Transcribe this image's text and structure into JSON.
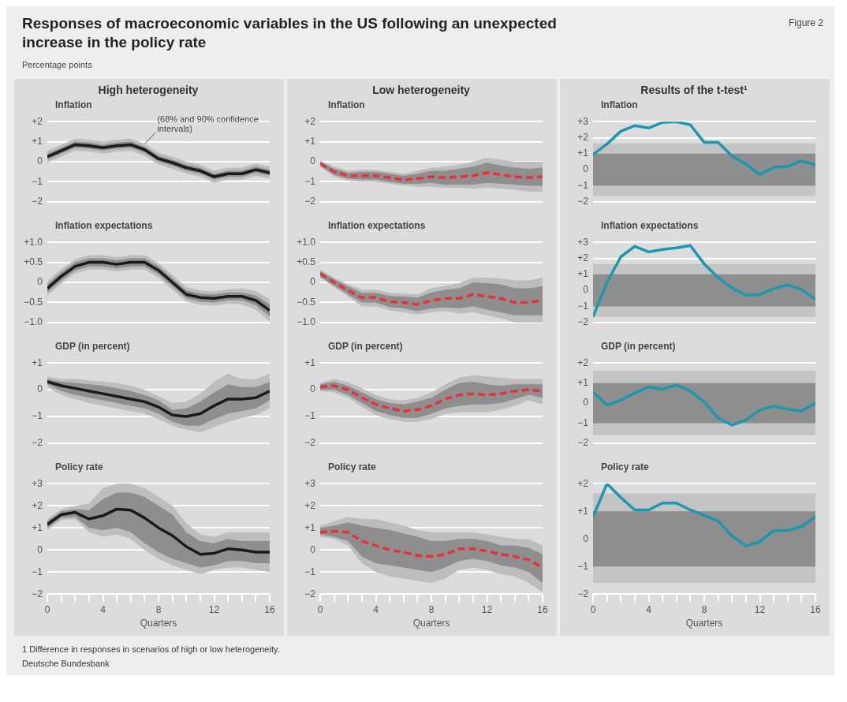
{
  "chart_data": [
    {
      "type": "other",
      "title": "Responses of macroeconomic variables in the US following an unexpected increase in the policy rate",
      "subtitle": "Percentage points",
      "annotations": [
        "Figure 2"
      ]
    },
    {
      "type": "line",
      "title": "High heterogeneity",
      "subtitle": "Inflation",
      "x": [
        0,
        1,
        2,
        3,
        4,
        5,
        6,
        7,
        8,
        9,
        10,
        11,
        12,
        13,
        14,
        15,
        16
      ],
      "xlim": [
        0,
        16
      ],
      "ylim": [
        -2,
        2
      ],
      "yticks": [
        {
          "value": 2,
          "label": "+2"
        },
        {
          "value": 1,
          "label": "+1"
        },
        {
          "value": 0,
          "label": "0"
        },
        {
          "value": -1,
          "label": "−1"
        },
        {
          "value": -2,
          "label": "−2"
        }
      ],
      "grid": "y",
      "marker": "none",
      "tick_labels": "y",
      "annotations": [
        {
          "text": "(68% and 90% confidence intervals)",
          "x": 7,
          "y": 0.9
        }
      ],
      "series": [
        {
          "color": "#bdbdbd",
          "values": [
            null,
            null,
            null,
            null,
            null,
            null,
            null,
            null,
            null,
            null,
            null,
            null,
            null,
            null,
            null,
            null,
            null
          ],
          "lower": [
            -0.05,
            0.25,
            0.55,
            0.5,
            0.4,
            0.5,
            0.55,
            0.3,
            -0.15,
            -0.35,
            -0.6,
            -0.75,
            -1.05,
            -0.9,
            -0.9,
            -0.7,
            -0.85
          ],
          "upper": [
            0.55,
            0.85,
            1.15,
            1.1,
            1.0,
            1.1,
            1.15,
            0.9,
            0.45,
            0.25,
            0.0,
            -0.15,
            -0.45,
            -0.3,
            -0.3,
            -0.1,
            -0.25
          ]
        },
        {
          "color": "#8e8e8e",
          "values": [
            null,
            null,
            null,
            null,
            null,
            null,
            null,
            null,
            null,
            null,
            null,
            null,
            null,
            null,
            null,
            null,
            null
          ],
          "lower": [
            0.1,
            0.4,
            0.7,
            0.65,
            0.55,
            0.65,
            0.7,
            0.45,
            0.0,
            -0.2,
            -0.45,
            -0.6,
            -0.9,
            -0.75,
            -0.75,
            -0.55,
            -0.7
          ],
          "upper": [
            0.4,
            0.7,
            1.0,
            0.95,
            0.85,
            0.95,
            1.0,
            0.75,
            0.3,
            0.1,
            -0.15,
            -0.3,
            -0.6,
            -0.45,
            -0.45,
            -0.25,
            -0.4
          ]
        },
        {
          "color": "#1a1a1a",
          "values": [
            0.25,
            0.55,
            0.85,
            0.8,
            0.7,
            0.8,
            0.85,
            0.6,
            0.15,
            -0.05,
            -0.3,
            -0.45,
            -0.75,
            -0.6,
            -0.6,
            -0.4,
            -0.55
          ]
        }
      ]
    },
    {
      "type": "line",
      "title": "Low heterogeneity",
      "subtitle": "Inflation",
      "x": [
        0,
        1,
        2,
        3,
        4,
        5,
        6,
        7,
        8,
        9,
        10,
        11,
        12,
        13,
        14,
        15,
        16
      ],
      "xlim": [
        0,
        16
      ],
      "ylim": [
        -2,
        2
      ],
      "yticks": [
        {
          "value": 2,
          "label": "+2"
        },
        {
          "value": 1,
          "label": "+1"
        },
        {
          "value": 0,
          "label": "0"
        },
        {
          "value": -1,
          "label": "−1"
        },
        {
          "value": -2,
          "label": "−2"
        }
      ],
      "grid": "y",
      "marker": "none",
      "tick_labels": "y",
      "line_style": "dashed",
      "series": [
        {
          "color": "#bdbdbd",
          "values": [
            null,
            null,
            null,
            null,
            null,
            null,
            null,
            null,
            null,
            null,
            null,
            null,
            null,
            null,
            null,
            null,
            null
          ],
          "lower": [
            -0.25,
            -0.75,
            -0.95,
            -1.0,
            -1.0,
            -1.1,
            -1.2,
            -1.25,
            -1.25,
            -1.3,
            -1.3,
            -1.35,
            -1.3,
            -1.35,
            -1.4,
            -1.5,
            -1.5
          ],
          "upper": [
            0.05,
            -0.25,
            -0.45,
            -0.4,
            -0.4,
            -0.5,
            -0.6,
            -0.45,
            -0.3,
            -0.25,
            -0.15,
            0.0,
            0.2,
            0.1,
            0.0,
            0.0,
            0.0
          ]
        },
        {
          "color": "#8e8e8e",
          "values": [
            null,
            null,
            null,
            null,
            null,
            null,
            null,
            null,
            null,
            null,
            null,
            null,
            null,
            null,
            null,
            null,
            null
          ],
          "lower": [
            -0.2,
            -0.65,
            -0.85,
            -0.9,
            -0.9,
            -1.0,
            -1.1,
            -1.1,
            -1.05,
            -1.15,
            -1.15,
            -1.15,
            -1.05,
            -1.1,
            -1.15,
            -1.2,
            -1.2
          ],
          "upper": [
            0.0,
            -0.35,
            -0.55,
            -0.5,
            -0.5,
            -0.6,
            -0.7,
            -0.6,
            -0.45,
            -0.45,
            -0.35,
            -0.25,
            -0.05,
            -0.2,
            -0.3,
            -0.35,
            -0.3
          ]
        },
        {
          "color": "#e8303a",
          "values": [
            -0.1,
            -0.5,
            -0.7,
            -0.7,
            -0.7,
            -0.8,
            -0.9,
            -0.85,
            -0.75,
            -0.8,
            -0.75,
            -0.7,
            -0.55,
            -0.65,
            -0.75,
            -0.8,
            -0.75
          ]
        }
      ]
    },
    {
      "type": "line",
      "title": "Results of the t-test¹",
      "subtitle": "Inflation",
      "x": [
        0,
        1,
        2,
        3,
        4,
        5,
        6,
        7,
        8,
        9,
        10,
        11,
        12,
        13,
        14,
        15,
        16
      ],
      "xlim": [
        0,
        16
      ],
      "ylim": [
        -2,
        3
      ],
      "yticks": [
        {
          "value": 3,
          "label": "+3"
        },
        {
          "value": 2,
          "label": "+2"
        },
        {
          "value": 1,
          "label": "+1"
        },
        {
          "value": 0,
          "label": "0"
        },
        {
          "value": -1,
          "label": "−1"
        },
        {
          "value": -2,
          "label": "−2"
        }
      ],
      "grid": "y",
      "marker": "none",
      "tick_labels": "y",
      "bands": [
        {
          "axis": "y",
          "from": -1.65,
          "to": 1.65,
          "color": "#c4c4c4"
        },
        {
          "axis": "y",
          "from": -1,
          "to": 1,
          "color": "#8e8e8e"
        }
      ],
      "series": [
        {
          "color": "#1b98ad",
          "values": [
            0.95,
            1.6,
            2.4,
            2.75,
            2.6,
            2.95,
            3.0,
            2.8,
            1.7,
            1.7,
            0.85,
            0.35,
            -0.3,
            0.15,
            0.2,
            0.55,
            0.3
          ]
        }
      ]
    },
    {
      "type": "line",
      "title": "Inflation expectations",
      "x": [
        0,
        1,
        2,
        3,
        4,
        5,
        6,
        7,
        8,
        9,
        10,
        11,
        12,
        13,
        14,
        15,
        16
      ],
      "xlim": [
        0,
        16
      ],
      "ylim": [
        -1,
        1
      ],
      "yticks": [
        {
          "value": 1,
          "label": "+1.0"
        },
        {
          "value": 0.5,
          "label": "+0.5"
        },
        {
          "value": 0,
          "label": "0"
        },
        {
          "value": -0.5,
          "label": "−0.5"
        },
        {
          "value": -1,
          "label": "−1.0"
        }
      ],
      "grid": "y",
      "marker": "none",
      "tick_labels": "y",
      "series": [
        {
          "color": "#bdbdbd",
          "values": [
            null,
            null,
            null,
            null,
            null,
            null,
            null,
            null,
            null,
            null,
            null,
            null,
            null,
            null,
            null,
            null,
            null
          ],
          "lower": [
            -0.33,
            -0.03,
            0.22,
            0.32,
            0.32,
            0.27,
            0.32,
            0.32,
            0.12,
            -0.18,
            -0.48,
            -0.56,
            -0.58,
            -0.53,
            -0.55,
            -0.68,
            -0.98
          ],
          "upper": [
            0.03,
            0.33,
            0.58,
            0.68,
            0.68,
            0.63,
            0.68,
            0.68,
            0.48,
            0.18,
            -0.12,
            -0.2,
            -0.22,
            -0.17,
            -0.15,
            -0.22,
            -0.42
          ]
        },
        {
          "color": "#8e8e8e",
          "values": [
            null,
            null,
            null,
            null,
            null,
            null,
            null,
            null,
            null,
            null,
            null,
            null,
            null,
            null,
            null,
            null,
            null
          ],
          "lower": [
            -0.25,
            0.05,
            0.3,
            0.4,
            0.4,
            0.35,
            0.4,
            0.4,
            0.2,
            -0.1,
            -0.4,
            -0.48,
            -0.5,
            -0.45,
            -0.45,
            -0.57,
            -0.85
          ],
          "upper": [
            -0.05,
            0.25,
            0.5,
            0.6,
            0.6,
            0.55,
            0.6,
            0.6,
            0.4,
            0.1,
            -0.2,
            -0.28,
            -0.3,
            -0.25,
            -0.25,
            -0.33,
            -0.55
          ]
        },
        {
          "color": "#1a1a1a",
          "values": [
            -0.15,
            0.15,
            0.4,
            0.5,
            0.5,
            0.45,
            0.5,
            0.5,
            0.3,
            0.0,
            -0.3,
            -0.38,
            -0.4,
            -0.35,
            -0.35,
            -0.45,
            -0.7
          ]
        }
      ]
    },
    {
      "type": "line",
      "title": "Inflation expectations",
      "x": [
        0,
        1,
        2,
        3,
        4,
        5,
        6,
        7,
        8,
        9,
        10,
        11,
        12,
        13,
        14,
        15,
        16
      ],
      "xlim": [
        0,
        16
      ],
      "ylim": [
        -1,
        1
      ],
      "yticks": [
        {
          "value": 1,
          "label": "+1.0"
        },
        {
          "value": 0.5,
          "label": "+0.5"
        },
        {
          "value": 0,
          "label": "0"
        },
        {
          "value": -0.5,
          "label": "−0.5"
        },
        {
          "value": -1,
          "label": "−1.0"
        }
      ],
      "grid": "y",
      "marker": "none",
      "tick_labels": "y",
      "line_style": "dashed",
      "series": [
        {
          "color": "#bdbdbd",
          "values": [
            null,
            null,
            null,
            null,
            null,
            null,
            null,
            null,
            null,
            null,
            null,
            null,
            null,
            null,
            null,
            null,
            null
          ],
          "lower": [
            0.12,
            -0.12,
            -0.35,
            -0.6,
            -0.6,
            -0.7,
            -0.75,
            -0.8,
            -0.75,
            -0.72,
            -0.78,
            -0.75,
            -0.82,
            -0.9,
            -1.0,
            -1.0,
            -1.0
          ],
          "upper": [
            0.32,
            0.12,
            -0.05,
            -0.18,
            -0.18,
            -0.26,
            -0.28,
            -0.3,
            -0.15,
            -0.08,
            -0.02,
            0.12,
            0.12,
            0.1,
            0.05,
            0.05,
            0.12
          ]
        },
        {
          "color": "#8e8e8e",
          "values": [
            null,
            null,
            null,
            null,
            null,
            null,
            null,
            null,
            null,
            null,
            null,
            null,
            null,
            null,
            null,
            null,
            null
          ],
          "lower": [
            0.15,
            -0.08,
            -0.3,
            -0.5,
            -0.5,
            -0.62,
            -0.65,
            -0.72,
            -0.65,
            -0.62,
            -0.65,
            -0.6,
            -0.68,
            -0.75,
            -0.82,
            -0.82,
            -0.82
          ],
          "upper": [
            0.28,
            0.08,
            -0.1,
            -0.26,
            -0.26,
            -0.34,
            -0.35,
            -0.38,
            -0.25,
            -0.18,
            -0.15,
            0.0,
            -0.02,
            -0.05,
            -0.15,
            -0.15,
            -0.1
          ]
        },
        {
          "color": "#e8303a",
          "values": [
            0.22,
            0.0,
            -0.2,
            -0.38,
            -0.38,
            -0.48,
            -0.5,
            -0.55,
            -0.45,
            -0.4,
            -0.4,
            -0.3,
            -0.35,
            -0.4,
            -0.5,
            -0.5,
            -0.45
          ]
        }
      ]
    },
    {
      "type": "line",
      "title": "Inflation expectations",
      "x": [
        0,
        1,
        2,
        3,
        4,
        5,
        6,
        7,
        8,
        9,
        10,
        11,
        12,
        13,
        14,
        15,
        16
      ],
      "xlim": [
        0,
        16
      ],
      "ylim": [
        -2,
        3
      ],
      "yticks": [
        {
          "value": 3,
          "label": "+3"
        },
        {
          "value": 2,
          "label": "+2"
        },
        {
          "value": 1,
          "label": "+1"
        },
        {
          "value": 0,
          "label": "0"
        },
        {
          "value": -1,
          "label": "−1"
        },
        {
          "value": -2,
          "label": "−2"
        }
      ],
      "grid": "y",
      "marker": "none",
      "tick_labels": "y",
      "bands": [
        {
          "axis": "y",
          "from": -1.65,
          "to": 1.65,
          "color": "#c4c4c4"
        },
        {
          "axis": "y",
          "from": -1,
          "to": 1,
          "color": "#8e8e8e"
        }
      ],
      "series": [
        {
          "color": "#1b98ad",
          "values": [
            -1.65,
            0.5,
            2.1,
            2.75,
            2.4,
            2.55,
            2.65,
            2.8,
            1.65,
            0.8,
            0.15,
            -0.3,
            -0.25,
            0.1,
            0.35,
            0.05,
            -0.55
          ]
        }
      ]
    },
    {
      "type": "line",
      "title": "GDP (in percent)",
      "x": [
        0,
        1,
        2,
        3,
        4,
        5,
        6,
        7,
        8,
        9,
        10,
        11,
        12,
        13,
        14,
        15,
        16
      ],
      "xlim": [
        0,
        16
      ],
      "ylim": [
        -2,
        1
      ],
      "yticks": [
        {
          "value": 1,
          "label": "+1"
        },
        {
          "value": 0,
          "label": "0"
        },
        {
          "value": -1,
          "label": "−1"
        },
        {
          "value": -2,
          "label": "−2"
        }
      ],
      "grid": "y",
      "marker": "none",
      "tick_labels": "y",
      "series": [
        {
          "color": "#bdbdbd",
          "values": [
            null,
            null,
            null,
            null,
            null,
            null,
            null,
            null,
            null,
            null,
            null,
            null,
            null,
            null,
            null,
            null,
            null
          ],
          "lower": [
            0.1,
            -0.2,
            -0.35,
            -0.5,
            -0.6,
            -0.7,
            -0.8,
            -0.9,
            -1.1,
            -1.35,
            -1.5,
            -1.6,
            -1.4,
            -1.2,
            -1.05,
            -0.95,
            -0.7
          ],
          "upper": [
            0.5,
            0.4,
            0.4,
            0.35,
            0.3,
            0.25,
            0.15,
            0.0,
            -0.25,
            -0.5,
            -0.45,
            -0.15,
            0.3,
            0.6,
            0.4,
            0.4,
            0.6
          ]
        },
        {
          "color": "#8e8e8e",
          "values": [
            null,
            null,
            null,
            null,
            null,
            null,
            null,
            null,
            null,
            null,
            null,
            null,
            null,
            null,
            null,
            null,
            null
          ],
          "lower": [
            0.2,
            -0.05,
            -0.2,
            -0.3,
            -0.4,
            -0.5,
            -0.6,
            -0.7,
            -0.9,
            -1.2,
            -1.35,
            -1.35,
            -1.1,
            -0.9,
            -0.8,
            -0.7,
            -0.4
          ],
          "upper": [
            0.4,
            0.3,
            0.25,
            0.2,
            0.15,
            0.05,
            -0.05,
            -0.2,
            -0.4,
            -0.75,
            -0.7,
            -0.45,
            -0.1,
            0.2,
            0.1,
            0.1,
            0.3
          ]
        },
        {
          "color": "#1a1a1a",
          "values": [
            0.3,
            0.15,
            0.05,
            -0.05,
            -0.15,
            -0.25,
            -0.35,
            -0.45,
            -0.65,
            -0.95,
            -1.0,
            -0.9,
            -0.6,
            -0.35,
            -0.35,
            -0.3,
            -0.05
          ]
        }
      ]
    },
    {
      "type": "line",
      "title": "GDP (in percent)",
      "x": [
        0,
        1,
        2,
        3,
        4,
        5,
        6,
        7,
        8,
        9,
        10,
        11,
        12,
        13,
        14,
        15,
        16
      ],
      "xlim": [
        0,
        16
      ],
      "ylim": [
        -2,
        1
      ],
      "yticks": [
        {
          "value": 1,
          "label": "+1"
        },
        {
          "value": 0,
          "label": "0"
        },
        {
          "value": -1,
          "label": "−1"
        },
        {
          "value": -2,
          "label": "−2"
        }
      ],
      "grid": "y",
      "marker": "none",
      "tick_labels": "y",
      "line_style": "dashed",
      "series": [
        {
          "color": "#bdbdbd",
          "values": [
            null,
            null,
            null,
            null,
            null,
            null,
            null,
            null,
            null,
            null,
            null,
            null,
            null,
            null,
            null,
            null,
            null
          ],
          "lower": [
            -0.05,
            -0.1,
            -0.3,
            -0.65,
            -0.95,
            -1.1,
            -1.2,
            -1.2,
            -1.1,
            -0.9,
            -0.85,
            -0.85,
            -0.85,
            -0.75,
            -0.6,
            -0.4,
            -0.55
          ],
          "upper": [
            0.25,
            0.4,
            0.3,
            0.05,
            -0.2,
            -0.35,
            -0.4,
            -0.3,
            -0.1,
            0.2,
            0.45,
            0.55,
            0.5,
            0.45,
            0.4,
            0.4,
            0.4
          ]
        },
        {
          "color": "#8e8e8e",
          "values": [
            null,
            null,
            null,
            null,
            null,
            null,
            null,
            null,
            null,
            null,
            null,
            null,
            null,
            null,
            null,
            null,
            null
          ],
          "lower": [
            0.0,
            0.0,
            -0.2,
            -0.5,
            -0.8,
            -0.95,
            -1.05,
            -1.05,
            -0.9,
            -0.7,
            -0.6,
            -0.55,
            -0.55,
            -0.5,
            -0.35,
            -0.2,
            -0.3
          ],
          "upper": [
            0.2,
            0.3,
            0.15,
            -0.1,
            -0.35,
            -0.5,
            -0.55,
            -0.45,
            -0.3,
            0.0,
            0.25,
            0.3,
            0.2,
            0.15,
            0.2,
            0.2,
            0.2
          ]
        },
        {
          "color": "#e8303a",
          "values": [
            0.1,
            0.15,
            0.0,
            -0.3,
            -0.55,
            -0.7,
            -0.8,
            -0.75,
            -0.6,
            -0.35,
            -0.2,
            -0.15,
            -0.2,
            -0.15,
            -0.05,
            0.0,
            -0.05
          ]
        }
      ]
    },
    {
      "type": "line",
      "title": "GDP (in percent)",
      "x": [
        0,
        1,
        2,
        3,
        4,
        5,
        6,
        7,
        8,
        9,
        10,
        11,
        12,
        13,
        14,
        15,
        16
      ],
      "xlim": [
        0,
        16
      ],
      "ylim": [
        -2,
        2
      ],
      "yticks": [
        {
          "value": 2,
          "label": "+2"
        },
        {
          "value": 1,
          "label": "+1"
        },
        {
          "value": 0,
          "label": "0"
        },
        {
          "value": -1,
          "label": "−1"
        },
        {
          "value": -2,
          "label": "−2"
        }
      ],
      "grid": "y",
      "marker": "none",
      "tick_labels": "y",
      "bands": [
        {
          "axis": "y",
          "from": -1.6,
          "to": 1.6,
          "color": "#c4c4c4"
        },
        {
          "axis": "y",
          "from": -1,
          "to": 1,
          "color": "#8e8e8e"
        }
      ],
      "series": [
        {
          "color": "#1b98ad",
          "values": [
            0.55,
            -0.1,
            0.15,
            0.5,
            0.8,
            0.7,
            0.9,
            0.6,
            0.05,
            -0.75,
            -1.1,
            -0.85,
            -0.35,
            -0.15,
            -0.3,
            -0.4,
            0.0
          ]
        }
      ]
    },
    {
      "type": "line",
      "title": "Policy rate",
      "xlabel": "Quarters",
      "x": [
        0,
        1,
        2,
        3,
        4,
        5,
        6,
        7,
        8,
        9,
        10,
        11,
        12,
        13,
        14,
        15,
        16
      ],
      "xlim": [
        0,
        16
      ],
      "xticks": [
        0,
        {
          "value": 1,
          "label": null
        },
        {
          "value": 2,
          "label": null
        },
        {
          "value": 3,
          "label": null
        },
        4,
        {
          "value": 5,
          "label": null
        },
        {
          "value": 6,
          "label": null
        },
        {
          "value": 7,
          "label": null
        },
        8,
        {
          "value": 9,
          "label": null
        },
        {
          "value": 10,
          "label": null
        },
        {
          "value": 11,
          "label": null
        },
        12,
        {
          "value": 13,
          "label": null
        },
        {
          "value": 14,
          "label": null
        },
        {
          "value": 15,
          "label": null
        },
        16
      ],
      "ylim": [
        -2,
        3
      ],
      "yticks": [
        {
          "value": 3,
          "label": "+3"
        },
        {
          "value": 2,
          "label": "+2"
        },
        {
          "value": 1,
          "label": "+1"
        },
        {
          "value": 0,
          "label": "0"
        },
        {
          "value": -1,
          "label": "−1"
        },
        {
          "value": -2,
          "label": "−2"
        }
      ],
      "grid": "y",
      "marker": "none",
      "series": [
        {
          "color": "#bdbdbd",
          "values": [
            null,
            null,
            null,
            null,
            null,
            null,
            null,
            null,
            null,
            null,
            null,
            null,
            null,
            null,
            null,
            null,
            null
          ],
          "lower": [
            0.9,
            1.35,
            1.4,
            0.8,
            0.6,
            0.7,
            0.5,
            0.0,
            -0.4,
            -0.7,
            -0.9,
            -1.1,
            -0.9,
            -0.8,
            -0.8,
            -0.9,
            -1.0
          ],
          "upper": [
            1.4,
            1.85,
            2.0,
            2.1,
            2.8,
            3.0,
            3.0,
            2.8,
            2.4,
            2.0,
            1.2,
            0.7,
            0.6,
            0.8,
            0.8,
            0.8,
            0.8
          ]
        },
        {
          "color": "#8e8e8e",
          "values": [
            null,
            null,
            null,
            null,
            null,
            null,
            null,
            null,
            null,
            null,
            null,
            null,
            null,
            null,
            null,
            null,
            null
          ],
          "lower": [
            1.0,
            1.45,
            1.5,
            1.0,
            0.9,
            1.0,
            0.8,
            0.3,
            -0.1,
            -0.4,
            -0.6,
            -0.8,
            -0.7,
            -0.5,
            -0.5,
            -0.6,
            -0.6
          ],
          "upper": [
            1.3,
            1.75,
            1.85,
            1.8,
            2.3,
            2.6,
            2.6,
            2.4,
            2.0,
            1.6,
            0.8,
            0.4,
            0.3,
            0.5,
            0.4,
            0.4,
            0.4
          ]
        },
        {
          "color": "#1a1a1a",
          "values": [
            1.15,
            1.6,
            1.7,
            1.4,
            1.55,
            1.85,
            1.8,
            1.45,
            1.0,
            0.65,
            0.15,
            -0.2,
            -0.15,
            0.05,
            0.0,
            -0.1,
            -0.1
          ]
        }
      ]
    },
    {
      "type": "line",
      "title": "Policy rate",
      "xlabel": "Quarters",
      "x": [
        0,
        1,
        2,
        3,
        4,
        5,
        6,
        7,
        8,
        9,
        10,
        11,
        12,
        13,
        14,
        15,
        16
      ],
      "xlim": [
        0,
        16
      ],
      "xticks": [
        0,
        {
          "value": 1,
          "label": null
        },
        {
          "value": 2,
          "label": null
        },
        {
          "value": 3,
          "label": null
        },
        4,
        {
          "value": 5,
          "label": null
        },
        {
          "value": 6,
          "label": null
        },
        {
          "value": 7,
          "label": null
        },
        8,
        {
          "value": 9,
          "label": null
        },
        {
          "value": 10,
          "label": null
        },
        {
          "value": 11,
          "label": null
        },
        12,
        {
          "value": 13,
          "label": null
        },
        {
          "value": 14,
          "label": null
        },
        {
          "value": 15,
          "label": null
        },
        16
      ],
      "ylim": [
        -2,
        3
      ],
      "yticks": [
        {
          "value": 3,
          "label": "+3"
        },
        {
          "value": 2,
          "label": "+2"
        },
        {
          "value": 1,
          "label": "+1"
        },
        {
          "value": 0,
          "label": "0"
        },
        {
          "value": -1,
          "label": "−1"
        },
        {
          "value": -2,
          "label": "−2"
        }
      ],
      "grid": "y",
      "marker": "none",
      "line_style": "dashed",
      "series": [
        {
          "color": "#bdbdbd",
          "values": [
            null,
            null,
            null,
            null,
            null,
            null,
            null,
            null,
            null,
            null,
            null,
            null,
            null,
            null,
            null,
            null,
            null
          ],
          "lower": [
            0.6,
            0.5,
            0.2,
            -0.6,
            -1.0,
            -1.2,
            -1.3,
            -1.4,
            -1.5,
            -1.3,
            -0.9,
            -0.8,
            -0.9,
            -1.1,
            -1.2,
            -1.5,
            -1.9
          ],
          "upper": [
            1.1,
            1.3,
            1.5,
            1.4,
            1.4,
            1.25,
            1.1,
            0.9,
            0.8,
            0.8,
            0.8,
            0.8,
            0.7,
            0.6,
            0.5,
            0.5,
            0.2
          ]
        },
        {
          "color": "#8e8e8e",
          "values": [
            null,
            null,
            null,
            null,
            null,
            null,
            null,
            null,
            null,
            null,
            null,
            null,
            null,
            null,
            null,
            null,
            null
          ],
          "lower": [
            0.7,
            0.6,
            0.4,
            -0.3,
            -0.6,
            -0.7,
            -0.8,
            -0.9,
            -1.0,
            -0.8,
            -0.5,
            -0.4,
            -0.5,
            -0.7,
            -0.8,
            -1.0,
            -1.5
          ],
          "upper": [
            1.0,
            1.1,
            1.25,
            1.1,
            1.0,
            0.9,
            0.75,
            0.6,
            0.4,
            0.4,
            0.5,
            0.5,
            0.4,
            0.2,
            0.2,
            0.1,
            -0.2
          ]
        },
        {
          "color": "#e8303a",
          "values": [
            0.8,
            0.85,
            0.8,
            0.4,
            0.2,
            0.0,
            -0.1,
            -0.25,
            -0.3,
            -0.2,
            0.05,
            0.05,
            -0.05,
            -0.2,
            -0.3,
            -0.45,
            -0.8
          ]
        }
      ]
    },
    {
      "type": "line",
      "title": "Policy rate",
      "xlabel": "Quarters",
      "x": [
        0,
        1,
        2,
        3,
        4,
        5,
        6,
        7,
        8,
        9,
        10,
        11,
        12,
        13,
        14,
        15,
        16
      ],
      "xlim": [
        0,
        16
      ],
      "xticks": [
        0,
        {
          "value": 1,
          "label": null
        },
        {
          "value": 2,
          "label": null
        },
        {
          "value": 3,
          "label": null
        },
        4,
        {
          "value": 5,
          "label": null
        },
        {
          "value": 6,
          "label": null
        },
        {
          "value": 7,
          "label": null
        },
        8,
        {
          "value": 9,
          "label": null
        },
        {
          "value": 10,
          "label": null
        },
        {
          "value": 11,
          "label": null
        },
        12,
        {
          "value": 13,
          "label": null
        },
        {
          "value": 14,
          "label": null
        },
        {
          "value": 15,
          "label": null
        },
        16
      ],
      "ylim": [
        -2,
        2
      ],
      "yticks": [
        {
          "value": 2,
          "label": "+2"
        },
        {
          "value": 1,
          "label": "+1"
        },
        {
          "value": 0,
          "label": "0"
        },
        {
          "value": -1,
          "label": "−1"
        },
        {
          "value": -2,
          "label": "−2"
        }
      ],
      "grid": "y",
      "marker": "none",
      "bands": [
        {
          "axis": "y",
          "from": -1.6,
          "to": 1.65,
          "color": "#c4c4c4"
        },
        {
          "axis": "y",
          "from": -1,
          "to": 1,
          "color": "#8e8e8e"
        }
      ],
      "series": [
        {
          "color": "#1b98ad",
          "values": [
            0.8,
            2.0,
            1.5,
            1.05,
            1.05,
            1.3,
            1.3,
            1.05,
            0.85,
            0.65,
            0.1,
            -0.25,
            -0.1,
            0.3,
            0.3,
            0.45,
            0.8
          ]
        }
      ]
    },
    {
      "type": "other",
      "annotations": [
        "1 Difference in responses in scenarios of high or low heterogeneity.",
        "Deutsche Bundesbank"
      ]
    }
  ]
}
